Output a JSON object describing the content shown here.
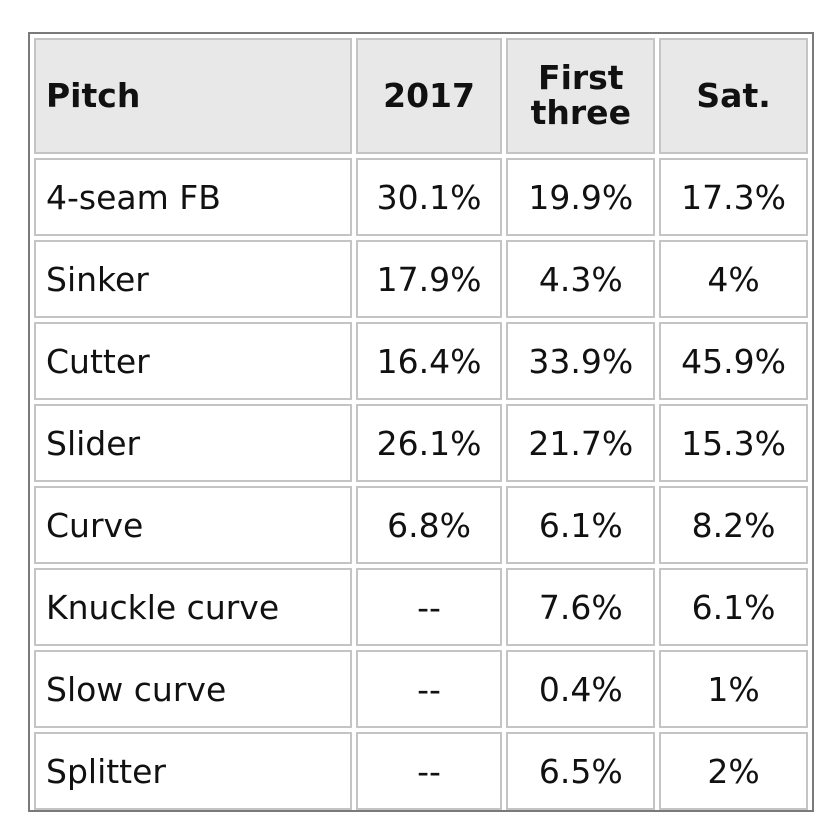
{
  "chart_data": {
    "type": "table",
    "columns": [
      "Pitch",
      "2017",
      "First three",
      "Sat."
    ],
    "rows": [
      [
        "4-seam FB",
        "30.1%",
        "19.9%",
        "17.3%"
      ],
      [
        "Sinker",
        "17.9%",
        "4.3%",
        "4%"
      ],
      [
        "Cutter",
        "16.4%",
        "33.9%",
        "45.9%"
      ],
      [
        "Slider",
        "26.1%",
        "21.7%",
        "15.3%"
      ],
      [
        "Curve",
        "6.8%",
        "6.1%",
        "8.2%"
      ],
      [
        "Knuckle curve",
        "--",
        "7.6%",
        "6.1%"
      ],
      [
        "Slow curve",
        "--",
        "0.4%",
        "1%"
      ],
      [
        "Splitter",
        "--",
        "6.5%",
        "2%"
      ]
    ]
  }
}
